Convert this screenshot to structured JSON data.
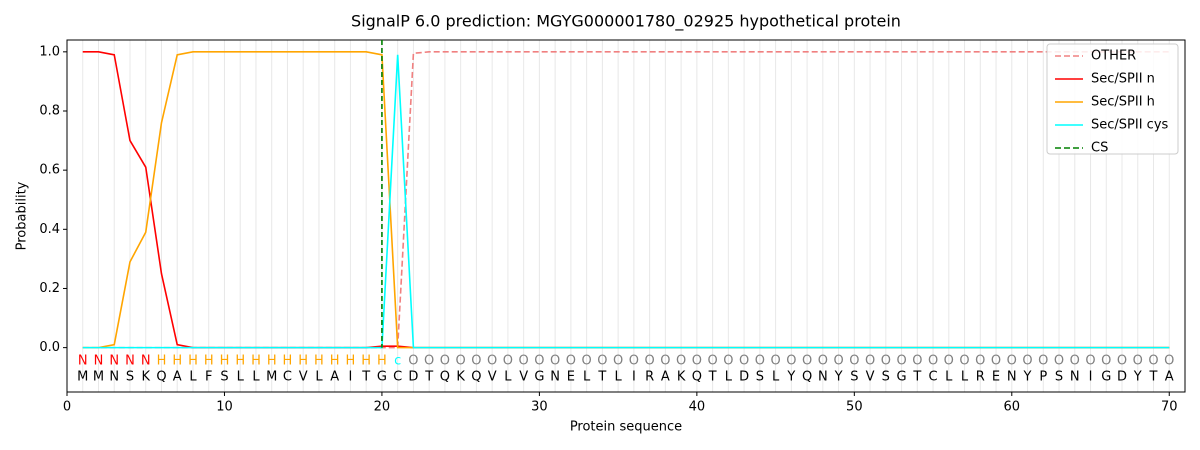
{
  "chart_data": {
    "type": "line",
    "title": "SignalP 6.0 prediction: MGYG000001780_02925 hypothetical protein",
    "xlabel": "Protein sequence",
    "ylabel": "Probability",
    "x": [
      1,
      2,
      3,
      4,
      5,
      6,
      7,
      8,
      9,
      10,
      11,
      12,
      13,
      14,
      15,
      16,
      17,
      18,
      19,
      20,
      21,
      22,
      23,
      24,
      25,
      26,
      27,
      28,
      29,
      30,
      31,
      32,
      33,
      34,
      35,
      36,
      37,
      38,
      39,
      40,
      41,
      42,
      43,
      44,
      45,
      46,
      47,
      48,
      49,
      50,
      51,
      52,
      53,
      54,
      55,
      56,
      57,
      58,
      59,
      60,
      61,
      62,
      63,
      64,
      65,
      66,
      67,
      68,
      69,
      70
    ],
    "residues": [
      "M",
      "M",
      "N",
      "S",
      "K",
      "Q",
      "A",
      "L",
      "F",
      "S",
      "L",
      "L",
      "M",
      "C",
      "V",
      "L",
      "A",
      "I",
      "T",
      "G",
      "C",
      "D",
      "T",
      "Q",
      "K",
      "Q",
      "V",
      "L",
      "V",
      "G",
      "N",
      "E",
      "L",
      "T",
      "L",
      "I",
      "R",
      "A",
      "K",
      "Q",
      "T",
      "L",
      "D",
      "S",
      "L",
      "Y",
      "Q",
      "N",
      "Y",
      "S",
      "V",
      "S",
      "G",
      "T",
      "C",
      "L",
      "L",
      "R",
      "E",
      "N",
      "Y",
      "P",
      "S",
      "N",
      "I",
      "G",
      "D",
      "Y",
      "T",
      "A"
    ],
    "regions": [
      "N",
      "N",
      "N",
      "N",
      "N",
      "H",
      "H",
      "H",
      "H",
      "H",
      "H",
      "H",
      "H",
      "H",
      "H",
      "H",
      "H",
      "H",
      "H",
      "H",
      "c",
      "O",
      "O",
      "O",
      "O",
      "O",
      "O",
      "O",
      "O",
      "O",
      "O",
      "O",
      "O",
      "O",
      "O",
      "O",
      "O",
      "O",
      "O",
      "O",
      "O",
      "O",
      "O",
      "O",
      "O",
      "O",
      "O",
      "O",
      "O",
      "O",
      "O",
      "O",
      "O",
      "O",
      "O",
      "O",
      "O",
      "O",
      "O",
      "O",
      "O",
      "O",
      "O",
      "O",
      "O",
      "O",
      "O",
      "O",
      "O",
      "O"
    ],
    "region_colors": {
      "N": "red",
      "H": "orange",
      "c": "cyan",
      "O": "gray"
    },
    "series": [
      {
        "name": "OTHER",
        "color": "lightcoral",
        "dashed": true,
        "values": [
          0,
          0,
          0,
          0,
          0,
          0,
          0,
          0,
          0,
          0,
          0,
          0,
          0,
          0,
          0,
          0,
          0,
          0,
          0,
          0,
          0,
          0.995,
          1,
          1,
          1,
          1,
          1,
          1,
          1,
          1,
          1,
          1,
          1,
          1,
          1,
          1,
          1,
          1,
          1,
          1,
          1,
          1,
          1,
          1,
          1,
          1,
          1,
          1,
          1,
          1,
          1,
          1,
          1,
          1,
          1,
          1,
          1,
          1,
          1,
          1,
          1,
          1,
          1,
          1,
          1,
          1,
          1,
          1,
          1,
          1
        ]
      },
      {
        "name": "Sec/SPII n",
        "color": "red",
        "values": [
          1,
          1,
          0.99,
          0.7,
          0.61,
          0.25,
          0.01,
          0,
          0,
          0,
          0,
          0,
          0,
          0,
          0,
          0,
          0,
          0,
          0,
          0.005,
          0.005,
          0,
          0,
          0,
          0,
          0,
          0,
          0,
          0,
          0,
          0,
          0,
          0,
          0,
          0,
          0,
          0,
          0,
          0,
          0,
          0,
          0,
          0,
          0,
          0,
          0,
          0,
          0,
          0,
          0,
          0,
          0,
          0,
          0,
          0,
          0,
          0,
          0,
          0,
          0,
          0,
          0,
          0,
          0,
          0,
          0,
          0,
          0,
          0,
          0
        ]
      },
      {
        "name": "Sec/SPII h",
        "color": "orange",
        "values": [
          0,
          0,
          0.01,
          0.29,
          0.39,
          0.76,
          0.99,
          1,
          1,
          1,
          1,
          1,
          1,
          1,
          1,
          1,
          1,
          1,
          1,
          0.99,
          0,
          0,
          0,
          0,
          0,
          0,
          0,
          0,
          0,
          0,
          0,
          0,
          0,
          0,
          0,
          0,
          0,
          0,
          0,
          0,
          0,
          0,
          0,
          0,
          0,
          0,
          0,
          0,
          0,
          0,
          0,
          0,
          0,
          0,
          0,
          0,
          0,
          0,
          0,
          0,
          0,
          0,
          0,
          0,
          0,
          0,
          0,
          0,
          0,
          0
        ]
      },
      {
        "name": "Sec/SPII cys",
        "color": "cyan",
        "values": [
          0,
          0,
          0,
          0,
          0,
          0,
          0,
          0,
          0,
          0,
          0,
          0,
          0,
          0,
          0,
          0,
          0,
          0,
          0,
          0,
          0.99,
          0,
          0,
          0,
          0,
          0,
          0,
          0,
          0,
          0,
          0,
          0,
          0,
          0,
          0,
          0,
          0,
          0,
          0,
          0,
          0,
          0,
          0,
          0,
          0,
          0,
          0,
          0,
          0,
          0,
          0,
          0,
          0,
          0,
          0,
          0,
          0,
          0,
          0,
          0,
          0,
          0,
          0,
          0,
          0,
          0,
          0,
          0,
          0,
          0
        ]
      }
    ],
    "cleavage_site": {
      "name": "CS",
      "color": "green",
      "x": 20
    },
    "xlim": [
      0,
      71
    ],
    "ylim": [
      -0.15,
      1.04
    ],
    "xticks": [
      0,
      10,
      20,
      30,
      40,
      50,
      60,
      70
    ],
    "yticks": [
      {
        "value": 0,
        "label": "0.0"
      },
      0.2,
      0.4,
      0.6,
      0.8,
      {
        "value": 1,
        "label": "1.0"
      }
    ],
    "legend": "upper right"
  }
}
